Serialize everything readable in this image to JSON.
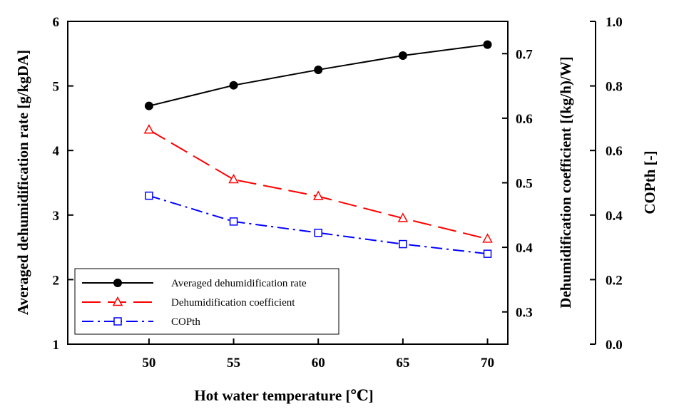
{
  "chart_data": {
    "type": "line",
    "xlabel": "Hot water temperature [℃]",
    "ylabel_left": "Averaged dehumidification rate [g/kgDA]",
    "ylabel_right1": "Dehumidification coefficient [(kg/h)/W]",
    "ylabel_right2": "COPth [-]",
    "x_ticks": [
      "50",
      "55",
      "60",
      "65",
      "70"
    ],
    "y_left_ticks": [
      "1",
      "2",
      "3",
      "4",
      "5",
      "6"
    ],
    "y_right1_ticks": [
      "0.3",
      "0.4",
      "0.5",
      "0.6",
      "0.7"
    ],
    "y_right2_ticks": [
      "0.0",
      "0.2",
      "0.4",
      "0.6",
      "0.8",
      "1.0"
    ],
    "xlim": [
      45.2,
      71.2
    ],
    "ylim_left": [
      1,
      6
    ],
    "ylim_right1": [
      0.25,
      0.75
    ],
    "ylim_right2": [
      0.0,
      1.0
    ],
    "grid": false,
    "legend_position": "bottom-left",
    "series": [
      {
        "name": "Averaged dehumidification rate",
        "axis": "left",
        "x": [
          50,
          55,
          60,
          65,
          70
        ],
        "values": [
          4.69,
          5.01,
          5.25,
          5.47,
          5.64
        ],
        "color": "#000000",
        "line_style": "solid",
        "marker": "filled-circle"
      },
      {
        "name": "Dehumidification coefficient",
        "axis": "right1",
        "x": [
          50,
          55,
          60,
          65,
          70
        ],
        "values": [
          0.582,
          0.505,
          0.479,
          0.445,
          0.413
        ],
        "color": "#ff0000",
        "line_style": "dashed",
        "marker": "open-triangle"
      },
      {
        "name": "COPth",
        "axis": "right2",
        "x": [
          50,
          55,
          60,
          65,
          70
        ],
        "values": [
          0.46,
          0.38,
          0.345,
          0.31,
          0.28
        ],
        "color": "#0000ff",
        "line_style": "dash-dot",
        "marker": "open-square"
      }
    ]
  }
}
